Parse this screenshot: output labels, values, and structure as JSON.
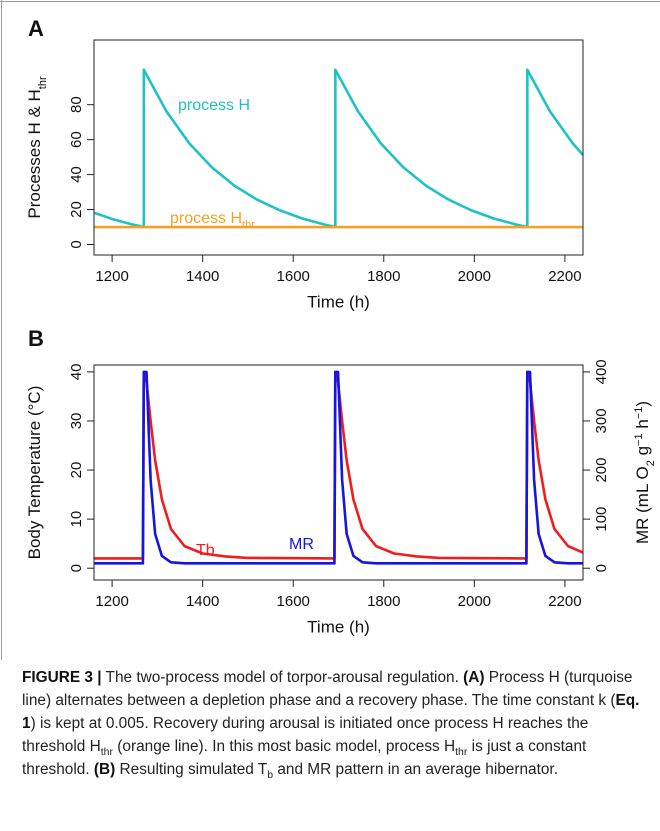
{
  "chart_data": [
    {
      "type": "line",
      "panel": "A",
      "xlabel": "Time (h)",
      "ylabel": [
        {
          "text": "Processes H & H"
        },
        {
          "text": "thr",
          "style": "sub"
        }
      ],
      "xlim": [
        1160,
        2240
      ],
      "xticks": [
        1200,
        1400,
        1600,
        1800,
        2000,
        2200
      ],
      "ylim": [
        -6,
        117
      ],
      "yticks": [
        0,
        20,
        40,
        60,
        80
      ],
      "x": [
        1160,
        1200,
        1240,
        1270,
        1270,
        1320,
        1370,
        1420,
        1470,
        1520,
        1570,
        1620,
        1670,
        1693,
        1693,
        1743,
        1793,
        1843,
        1893,
        1943,
        1993,
        2043,
        2093,
        2117,
        2117,
        2167,
        2217,
        2240
      ],
      "series": [
        {
          "name": "process H",
          "color": "#1fc1c3",
          "values": [
            18.2,
            14.6,
            11.8,
            10,
            100,
            76.2,
            58.0,
            44.2,
            33.7,
            25.7,
            19.6,
            14.9,
            11.4,
            10,
            100,
            76.2,
            58.0,
            44.2,
            33.7,
            25.7,
            19.6,
            14.9,
            11.4,
            10,
            100,
            76.2,
            58.0,
            51.2
          ]
        },
        {
          "name": "process H",
          "name_sub": "thr",
          "color": "#f3a124",
          "values": [
            10,
            10,
            10,
            10,
            10,
            10,
            10,
            10,
            10,
            10,
            10,
            10,
            10,
            10,
            10,
            10,
            10,
            10,
            10,
            10,
            10,
            10,
            10,
            10,
            10,
            10,
            10,
            10
          ]
        }
      ]
    },
    {
      "type": "line",
      "panel": "B",
      "xlabel": "Time (h)",
      "ylabel": [
        {
          "text": "Body Temperature (°C)"
        }
      ],
      "y2label": [
        {
          "text": "MR (mL O"
        },
        {
          "text": "2",
          "style": "sub"
        },
        {
          "text": " g"
        },
        {
          "text": "−1",
          "style": "sup"
        },
        {
          "text": " h"
        },
        {
          "text": "−1",
          "style": "sup"
        },
        {
          "text": ")"
        }
      ],
      "xlim": [
        1160,
        2240
      ],
      "xticks": [
        1200,
        1400,
        1600,
        1800,
        2000,
        2200
      ],
      "ylim": [
        -2.4,
        41.4
      ],
      "yticks": [
        0,
        10,
        20,
        30,
        40
      ],
      "y2lim": [
        -24,
        414
      ],
      "y2ticks": [
        0,
        100,
        200,
        300,
        400
      ],
      "x": [
        1160,
        1268,
        1270,
        1276,
        1285,
        1295,
        1310,
        1330,
        1360,
        1400,
        1450,
        1500,
        1691,
        1693,
        1699,
        1708,
        1718,
        1733,
        1753,
        1783,
        1823,
        1873,
        1923,
        2115,
        2117,
        2123,
        2132,
        2142,
        2157,
        2177,
        2207,
        2240
      ],
      "series": [
        {
          "name": "Tb",
          "color": "#f01d1d",
          "values": [
            2,
            2,
            40,
            38,
            30,
            22,
            14,
            8,
            4.5,
            3,
            2.4,
            2.1,
            2,
            40,
            38,
            30,
            22,
            14,
            8,
            4.5,
            3,
            2.4,
            2.1,
            2,
            40,
            38,
            30,
            22,
            14,
            8,
            4.5,
            3.2
          ]
        },
        {
          "name": "MR",
          "color": "#1515e0",
          "axis": "y2",
          "values": [
            10,
            10,
            400,
            400,
            180,
            70,
            25,
            12,
            10,
            10,
            10,
            10,
            10,
            400,
            400,
            180,
            70,
            25,
            12,
            10,
            10,
            10,
            10,
            10,
            400,
            400,
            180,
            70,
            25,
            12,
            10,
            10
          ]
        }
      ]
    }
  ],
  "caption": [
    {
      "text": "FIGURE 3 |",
      "style": "bold"
    },
    {
      "text": " The two-process model of torpor-arousal regulation. "
    },
    {
      "text": "(A)",
      "style": "bold"
    },
    {
      "text": " Process H (turquoise line) alternates between a depletion phase and a recovery phase. The time constant k ("
    },
    {
      "text": "Eq. 1",
      "style": "bold"
    },
    {
      "text": ") is kept at 0.005. Recovery during arousal is initiated once process H reaches the threshold H"
    },
    {
      "text": "thr",
      "style": "sub"
    },
    {
      "text": " (orange line). In this most basic model, process H"
    },
    {
      "text": "thr",
      "style": "sub"
    },
    {
      "text": " is just a constant threshold. "
    },
    {
      "text": "(B)",
      "style": "bold"
    },
    {
      "text": " Resulting simulated T"
    },
    {
      "text": "b",
      "style": "sub"
    },
    {
      "text": " and MR pattern in an average hibernator."
    }
  ]
}
